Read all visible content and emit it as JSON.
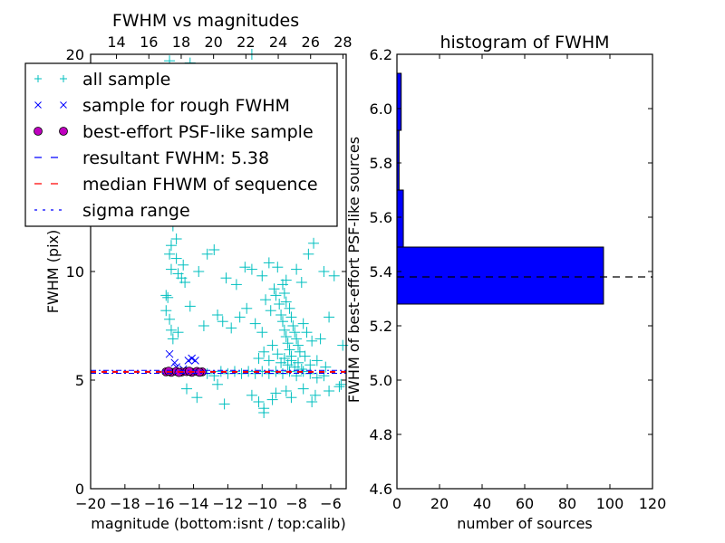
{
  "chart_data": [
    {
      "type": "scatter",
      "title": "FWHM vs magnitudes",
      "xlabel": "magnitude (bottom:isnt / top:calib)",
      "ylabel": "FWHM (pix)",
      "xlim": [
        -20,
        -5.1
      ],
      "ylim": [
        0,
        20
      ],
      "xticks": [
        -20,
        -18,
        -16,
        -14,
        -12,
        -10,
        -8,
        -6
      ],
      "xtick_labels": [
        "−20",
        "−18",
        "−16",
        "−14",
        "−12",
        "−10",
        "−8",
        "−6"
      ],
      "yticks": [
        0,
        5,
        10,
        20
      ],
      "ytick_labels": [
        "0",
        "5",
        "10",
        "20"
      ],
      "top_xlim": [
        12.4,
        28.2
      ],
      "top_xticks": [
        14,
        16,
        18,
        20,
        22,
        24,
        26,
        28
      ],
      "top_xtick_labels": [
        "14",
        "16",
        "18",
        "20",
        "22",
        "24",
        "26",
        "28"
      ],
      "grid": false,
      "legend_position": "top-left",
      "legend": [
        {
          "label": "all sample",
          "marker": "plus",
          "color": "#00bfbf"
        },
        {
          "label": "sample for rough FWHM",
          "marker": "x",
          "color": "#0000ff"
        },
        {
          "label": "best-effort PSF-like sample",
          "marker": "circle",
          "color": "#bf00bf"
        },
        {
          "label": "resultant FWHM: 5.38",
          "marker": "dashed",
          "color": "#0000ff"
        },
        {
          "label": "median FHWM of sequence",
          "marker": "dashed",
          "color": "#ff0000"
        },
        {
          "label": "sigma range",
          "marker": "dashdot",
          "color": "#0000ff"
        }
      ],
      "hlines": [
        {
          "name": "resultant-fwhm",
          "y": 5.38,
          "color": "#0000ff",
          "style": "dashed"
        },
        {
          "name": "median-fwhm",
          "y": 5.38,
          "color": "#ff0000",
          "style": "dashed"
        },
        {
          "name": "sigma-upper",
          "y": 5.45,
          "color": "#0000ff",
          "style": "dashdot"
        },
        {
          "name": "sigma-lower",
          "y": 5.31,
          "color": "#0000ff",
          "style": "dashdot"
        }
      ],
      "series": [
        {
          "name": "all sample",
          "color": "#00bfbf",
          "marker": "plus",
          "points": [
            [
              -10.6,
              20.0
            ],
            [
              -15.4,
              19.7
            ],
            [
              -14.2,
              19.6
            ],
            [
              -9.4,
              19.3
            ],
            [
              -15.3,
              12.5
            ],
            [
              -15.2,
              12.1
            ],
            [
              -15.0,
              11.5
            ],
            [
              -15.3,
              11.2
            ],
            [
              -15.4,
              10.8
            ],
            [
              -15.0,
              10.6
            ],
            [
              -14.6,
              10.3
            ],
            [
              -15.3,
              10.1
            ],
            [
              -14.9,
              9.9
            ],
            [
              -14.7,
              9.7
            ],
            [
              -14.5,
              9.5
            ],
            [
              -13.7,
              10.0
            ],
            [
              -13.2,
              10.8
            ],
            [
              -12.8,
              11.0
            ],
            [
              -12.1,
              9.7
            ],
            [
              -11.5,
              9.4
            ],
            [
              -11.0,
              10.2
            ],
            [
              -10.6,
              10.1
            ],
            [
              -10.0,
              9.8
            ],
            [
              -9.6,
              10.4
            ],
            [
              -9.1,
              10.2
            ],
            [
              -8.6,
              9.6
            ],
            [
              -8.0,
              10.1
            ],
            [
              -7.7,
              9.5
            ],
            [
              -7.3,
              10.8
            ],
            [
              -7.0,
              11.3
            ],
            [
              -6.4,
              10.0
            ],
            [
              -5.8,
              9.8
            ],
            [
              -15.6,
              8.9
            ],
            [
              -15.5,
              8.8
            ],
            [
              -15.6,
              8.2
            ],
            [
              -15.4,
              7.8
            ],
            [
              -15.3,
              7.3
            ],
            [
              -15.2,
              6.9
            ],
            [
              -14.9,
              7.2
            ],
            [
              -14.2,
              8.4
            ],
            [
              -13.4,
              7.5
            ],
            [
              -12.6,
              8.0
            ],
            [
              -12.3,
              7.7
            ],
            [
              -11.8,
              7.4
            ],
            [
              -11.3,
              7.9
            ],
            [
              -10.9,
              8.3
            ],
            [
              -10.4,
              7.6
            ],
            [
              -10.0,
              7.2
            ],
            [
              -9.8,
              8.7
            ],
            [
              -9.5,
              8.2
            ],
            [
              -9.3,
              9.2
            ],
            [
              -9.2,
              8.9
            ],
            [
              -9.0,
              8.5
            ],
            [
              -8.9,
              8.0
            ],
            [
              -8.8,
              7.7
            ],
            [
              -8.7,
              7.3
            ],
            [
              -8.6,
              7.0
            ],
            [
              -8.5,
              6.7
            ],
            [
              -8.4,
              6.4
            ],
            [
              -8.3,
              6.1
            ],
            [
              -8.8,
              9.4
            ],
            [
              -8.7,
              9.0
            ],
            [
              -8.6,
              8.6
            ],
            [
              -8.4,
              8.3
            ],
            [
              -8.3,
              7.9
            ],
            [
              -8.2,
              7.5
            ],
            [
              -8.1,
              7.2
            ],
            [
              -8.0,
              6.9
            ],
            [
              -7.9,
              6.6
            ],
            [
              -7.8,
              6.3
            ],
            [
              -7.6,
              7.6
            ],
            [
              -7.4,
              7.2
            ],
            [
              -7.1,
              6.8
            ],
            [
              -6.6,
              6.9
            ],
            [
              -6.1,
              7.9
            ],
            [
              -5.3,
              6.6
            ],
            [
              -10.2,
              6.0
            ],
            [
              -9.9,
              6.3
            ],
            [
              -9.6,
              5.9
            ],
            [
              -9.4,
              6.6
            ],
            [
              -9.1,
              6.2
            ],
            [
              -8.9,
              5.8
            ],
            [
              -8.7,
              6.0
            ],
            [
              -8.5,
              5.7
            ],
            [
              -8.3,
              5.9
            ],
            [
              -8.1,
              5.6
            ],
            [
              -7.9,
              5.8
            ],
            [
              -7.7,
              5.5
            ],
            [
              -7.5,
              6.1
            ],
            [
              -7.2,
              5.7
            ],
            [
              -6.8,
              5.9
            ],
            [
              -6.3,
              5.6
            ],
            [
              -13.2,
              5.3
            ],
            [
              -12.8,
              5.2
            ],
            [
              -12.4,
              5.4
            ],
            [
              -12.0,
              5.3
            ],
            [
              -11.6,
              5.4
            ],
            [
              -11.2,
              5.3
            ],
            [
              -10.8,
              5.4
            ],
            [
              -10.4,
              5.3
            ],
            [
              -10.0,
              5.4
            ],
            [
              -9.6,
              5.3
            ],
            [
              -9.2,
              5.4
            ],
            [
              -8.8,
              5.3
            ],
            [
              -8.4,
              5.4
            ],
            [
              -8.0,
              5.2
            ],
            [
              -7.6,
              5.4
            ],
            [
              -7.2,
              5.3
            ],
            [
              -6.8,
              5.1
            ],
            [
              -6.4,
              5.2
            ],
            [
              -14.4,
              4.6
            ],
            [
              -13.8,
              4.2
            ],
            [
              -12.6,
              4.8
            ],
            [
              -12.2,
              3.9
            ],
            [
              -10.6,
              4.3
            ],
            [
              -10.2,
              4.0
            ],
            [
              -9.9,
              3.7
            ],
            [
              -9.9,
              3.5
            ],
            [
              -9.4,
              4.1
            ],
            [
              -9.2,
              4.4
            ],
            [
              -8.6,
              4.5
            ],
            [
              -8.3,
              4.2
            ],
            [
              -7.6,
              4.6
            ],
            [
              -7.1,
              4.0
            ],
            [
              -6.9,
              4.3
            ],
            [
              -6.1,
              4.5
            ],
            [
              -5.5,
              4.7
            ],
            [
              -5.4,
              4.8
            ]
          ]
        },
        {
          "name": "sample for rough FWHM",
          "color": "#0000ff",
          "marker": "x",
          "points": [
            [
              -15.4,
              6.2
            ],
            [
              -15.1,
              5.8
            ],
            [
              -14.3,
              5.9
            ],
            [
              -14.1,
              6.0
            ],
            [
              -13.9,
              5.9
            ],
            [
              -15.0,
              5.6
            ],
            [
              -14.6,
              5.5
            ]
          ]
        },
        {
          "name": "best-effort PSF-like sample",
          "color": "#bf00bf",
          "marker": "circle",
          "points": [
            [
              -15.6,
              5.38
            ],
            [
              -15.3,
              5.36
            ],
            [
              -15.0,
              5.4
            ],
            [
              -14.7,
              5.37
            ],
            [
              -14.4,
              5.39
            ],
            [
              -14.1,
              5.36
            ],
            [
              -13.8,
              5.4
            ],
            [
              -13.5,
              5.38
            ],
            [
              -15.45,
              5.41
            ],
            [
              -14.85,
              5.35
            ],
            [
              -14.25,
              5.41
            ],
            [
              -13.65,
              5.36
            ]
          ]
        }
      ]
    },
    {
      "type": "bar",
      "orientation": "horizontal",
      "title": "histogram of FWHM",
      "xlabel": "number of sources",
      "ylabel": "FWHM of best-effort PSF-like sources",
      "xlim": [
        0,
        120
      ],
      "ylim": [
        4.6,
        6.2
      ],
      "xticks": [
        0,
        20,
        40,
        60,
        80,
        100,
        120
      ],
      "xtick_labels": [
        "0",
        "20",
        "40",
        "60",
        "80",
        "100",
        "120"
      ],
      "yticks": [
        4.6,
        4.8,
        5.0,
        5.2,
        5.4,
        5.6,
        5.8,
        6.0,
        6.2
      ],
      "ytick_labels": [
        "4.6",
        "4.8",
        "5.0",
        "5.2",
        "5.4",
        "5.6",
        "5.8",
        "6.0",
        "6.2"
      ],
      "grid": false,
      "bar_color": "#0000ff",
      "bins": [
        {
          "from": 5.28,
          "to": 5.49,
          "count": 97
        },
        {
          "from": 5.49,
          "to": 5.7,
          "count": 3
        },
        {
          "from": 5.7,
          "to": 5.92,
          "count": 1
        },
        {
          "from": 5.92,
          "to": 6.13,
          "count": 2
        }
      ],
      "hline": {
        "y": 5.38,
        "color": "#000000",
        "style": "dashed"
      }
    }
  ]
}
